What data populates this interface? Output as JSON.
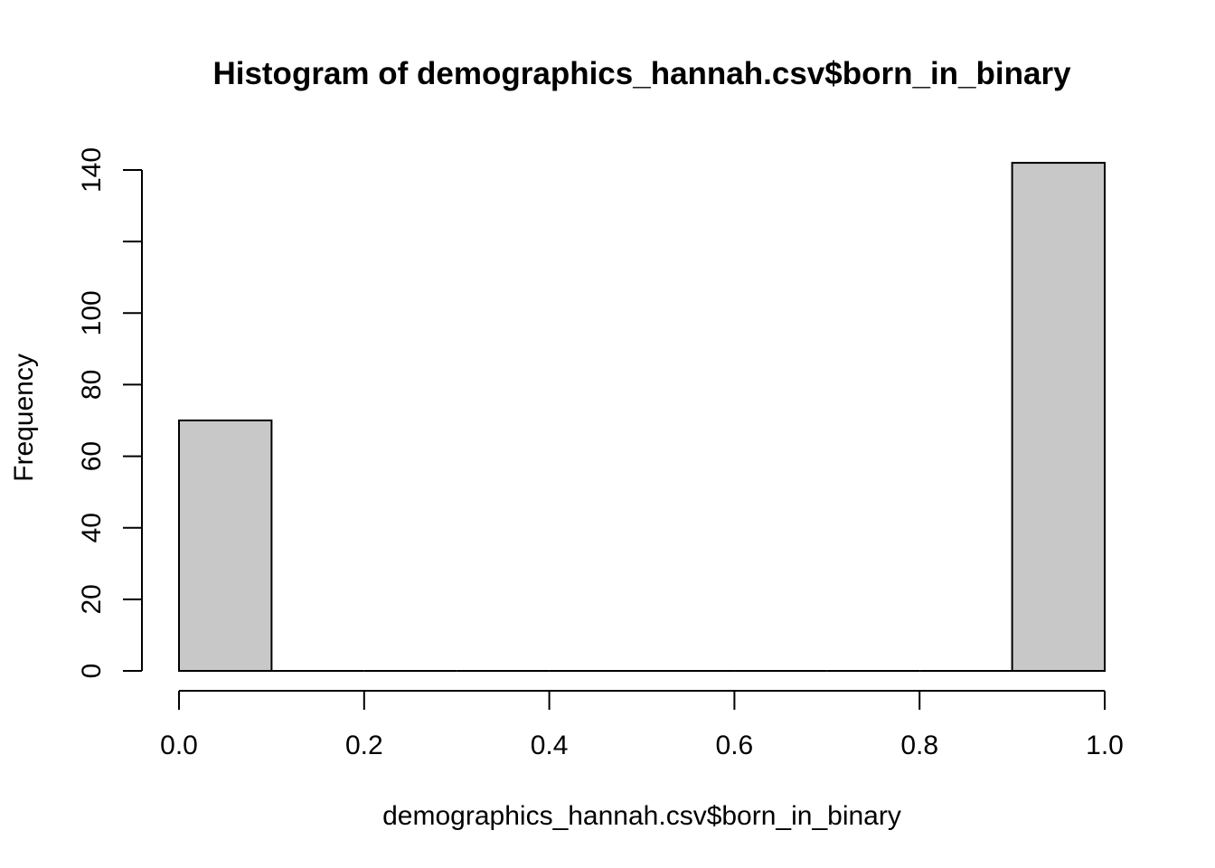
{
  "chart_data": {
    "type": "bar",
    "title": "Histogram of demographics_hannah.csv$born_in_binary",
    "xlabel": "demographics_hannah.csv$born_in_binary",
    "ylabel": "Frequency",
    "bins": [
      {
        "x0": 0.0,
        "x1": 0.1,
        "count": 70
      },
      {
        "x0": 0.1,
        "x1": 0.2,
        "count": 0
      },
      {
        "x0": 0.2,
        "x1": 0.3,
        "count": 0
      },
      {
        "x0": 0.3,
        "x1": 0.4,
        "count": 0
      },
      {
        "x0": 0.4,
        "x1": 0.5,
        "count": 0
      },
      {
        "x0": 0.5,
        "x1": 0.6,
        "count": 0
      },
      {
        "x0": 0.6,
        "x1": 0.7,
        "count": 0
      },
      {
        "x0": 0.7,
        "x1": 0.8,
        "count": 0
      },
      {
        "x0": 0.8,
        "x1": 0.9,
        "count": 0
      },
      {
        "x0": 0.9,
        "x1": 1.0,
        "count": 142
      }
    ],
    "xlim": [
      0.0,
      1.0
    ],
    "ylim": [
      0,
      140
    ],
    "x_ticks": [
      0.0,
      0.2,
      0.4,
      0.6,
      0.8,
      1.0
    ],
    "x_tick_labels": [
      "0.0",
      "0.2",
      "0.4",
      "0.6",
      "0.8",
      "1.0"
    ],
    "y_ticks": [
      0,
      20,
      40,
      60,
      80,
      100,
      120,
      140
    ],
    "y_tick_labels": [
      "0",
      "20",
      "40",
      "60",
      "80",
      "100",
      "",
      "140"
    ],
    "bar_color": "#c8c8c8",
    "grid": false,
    "legend": false
  }
}
